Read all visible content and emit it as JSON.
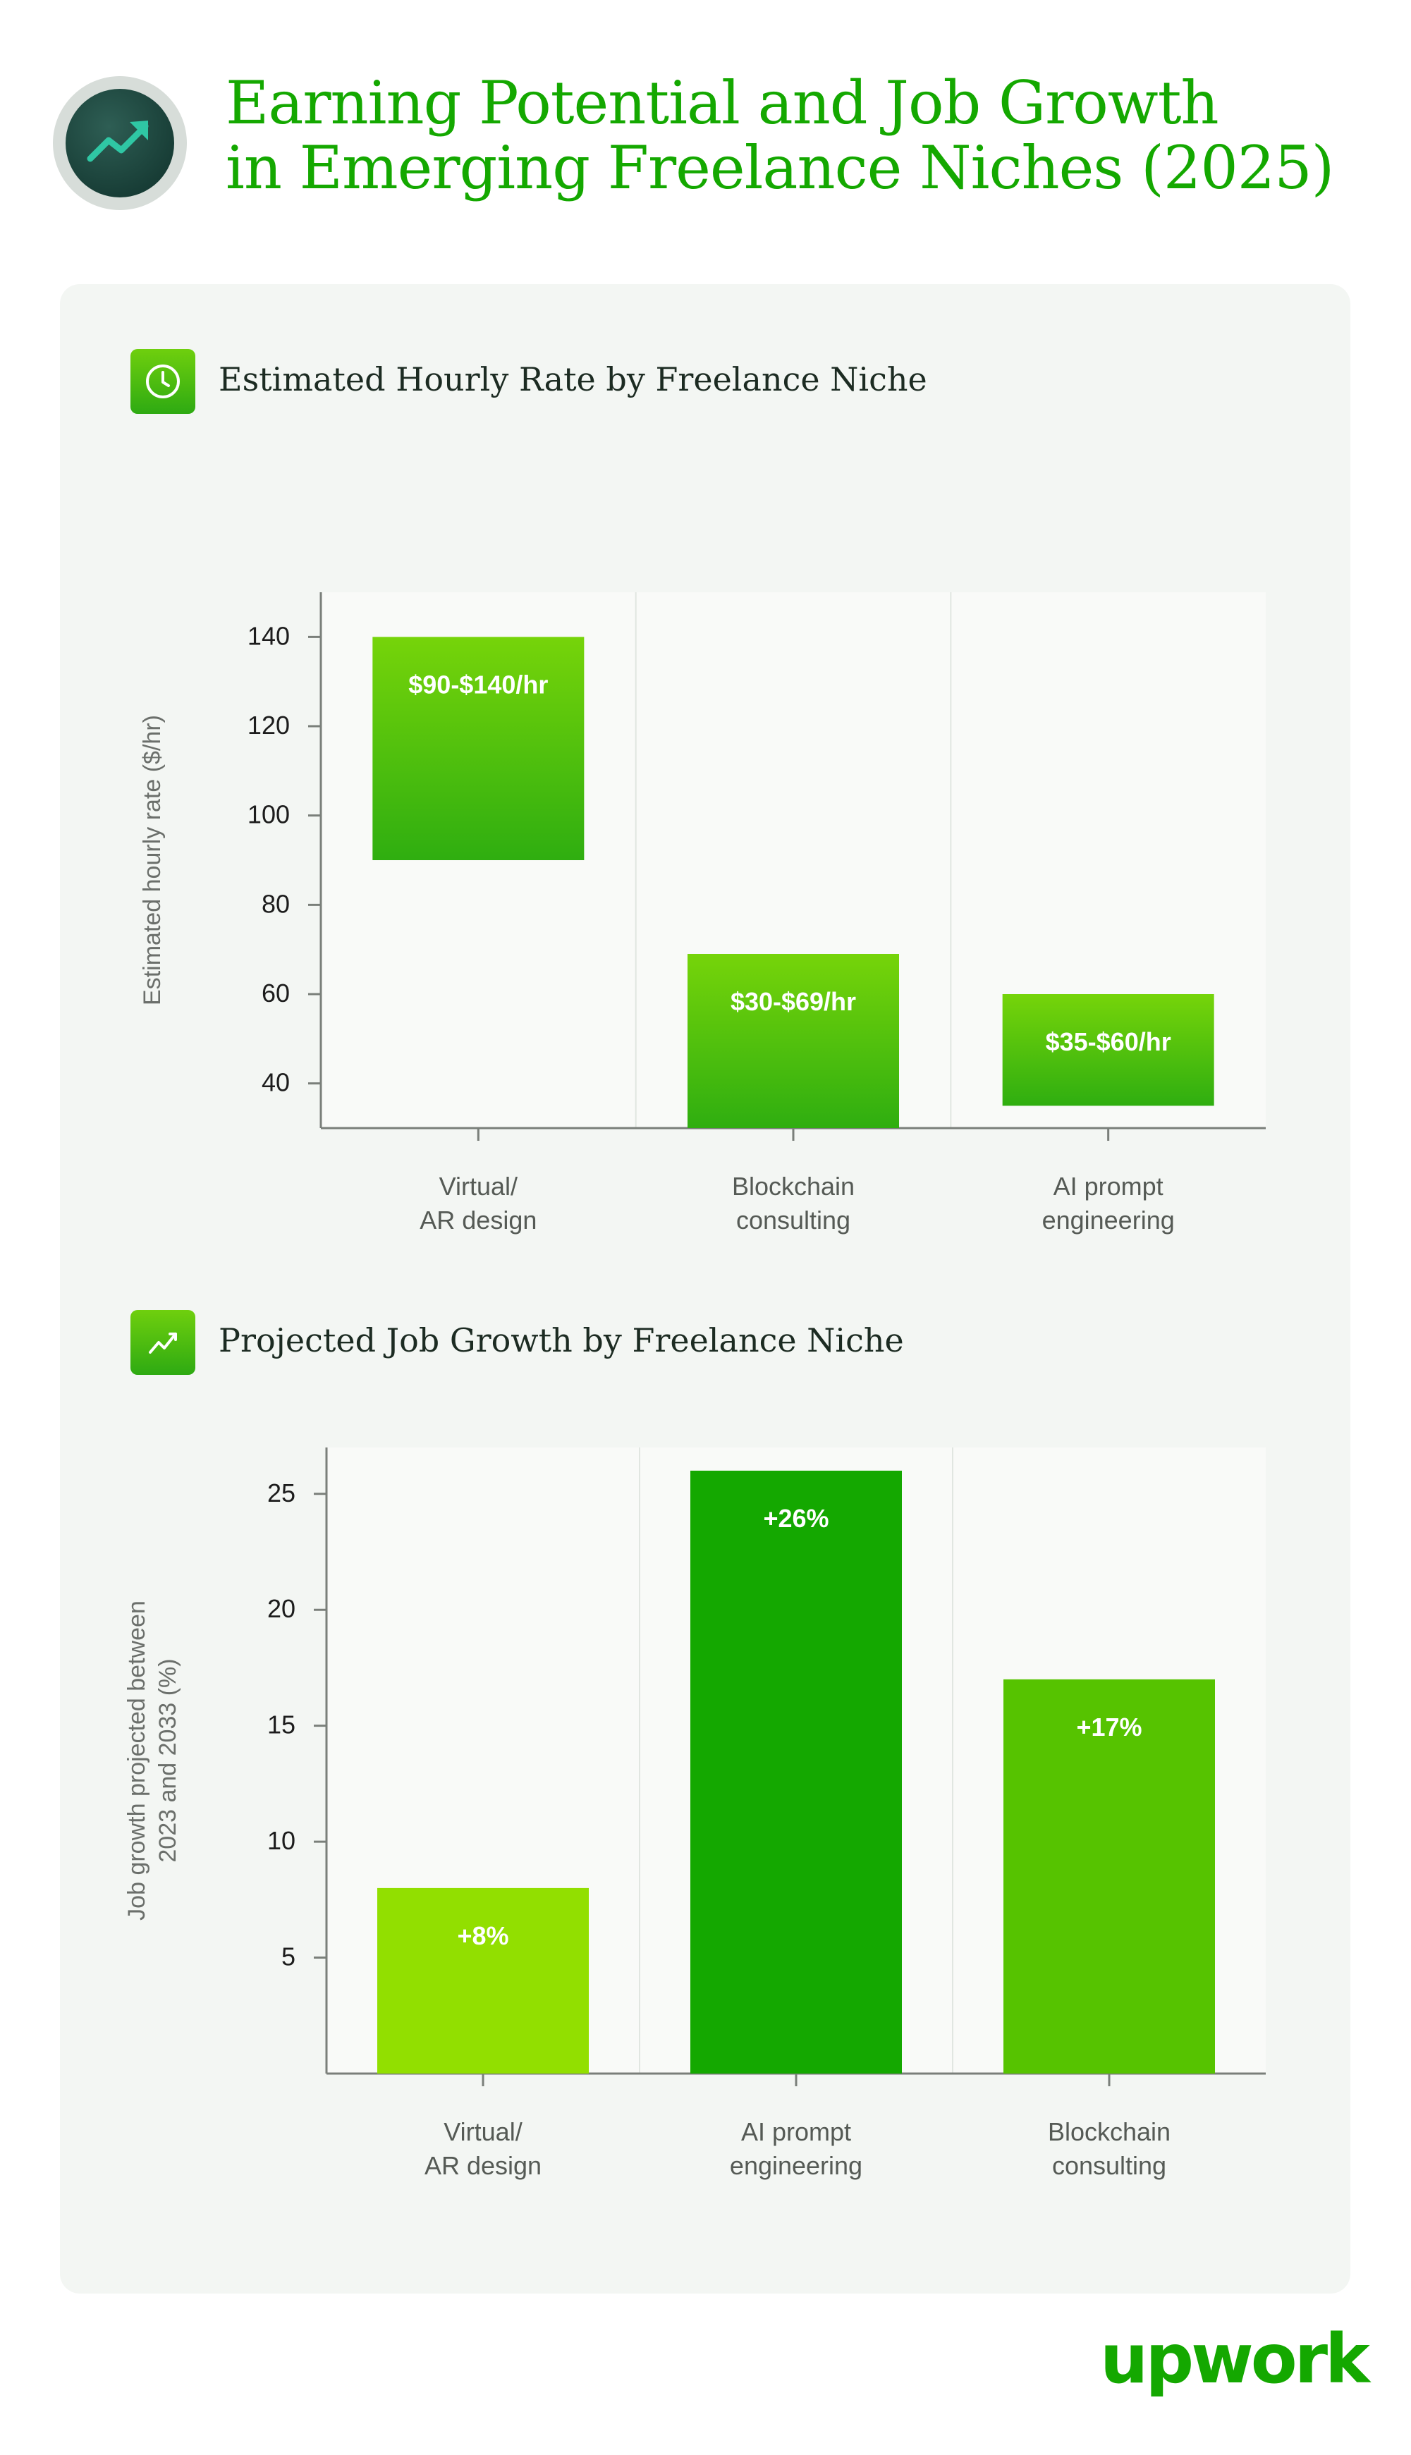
{
  "header": {
    "title_line1": "Earning Potential and Job Growth",
    "title_line2": "in Emerging Freelance Niches (2025)"
  },
  "icons": {
    "header": "trending-up-icon",
    "hourly_section": "clock-icon",
    "growth_section": "trend-line-icon"
  },
  "colors": {
    "brand": "#14a800",
    "panel": "#f3f6f3",
    "bar_light": "#92df00",
    "bar_mid": "#56c300",
    "bar_dark": "#14a800"
  },
  "chart_data": [
    {
      "type": "bar",
      "title": "Estimated Hourly Rate by Freelance Niche",
      "ylabel": "Estimated hourly rate ($/hr)",
      "xlabel": "",
      "ylim": [
        30,
        150
      ],
      "yticks": [
        40,
        60,
        80,
        100,
        120,
        140
      ],
      "categories": [
        [
          "Virtual/",
          "AR design"
        ],
        [
          "Blockchain",
          "consulting"
        ],
        [
          "AI prompt",
          "engineering"
        ]
      ],
      "ranges": [
        {
          "low": 90,
          "high": 140,
          "label": "$90-$140/hr"
        },
        {
          "low": 30,
          "high": 69,
          "label": "$30-$69/hr"
        },
        {
          "low": 35,
          "high": 60,
          "label": "$35-$60/hr"
        }
      ],
      "grid": true,
      "legend": "none"
    },
    {
      "type": "bar",
      "title": "Projected Job Growth by Freelance Niche",
      "ylabel": "Job growth projected between 2023 and 2033 (%)",
      "xlabel": "",
      "ylim": [
        0,
        27
      ],
      "yticks": [
        5,
        10,
        15,
        20,
        25
      ],
      "categories": [
        [
          "Virtual/",
          "AR design"
        ],
        [
          "AI prompt",
          "engineering"
        ],
        [
          "Blockchain",
          "consulting"
        ]
      ],
      "values": [
        8,
        26,
        17
      ],
      "labels": [
        "+8%",
        "+26%",
        "+17%"
      ],
      "bar_colors": [
        "#92df00",
        "#14a800",
        "#56c300"
      ],
      "grid": true,
      "legend": "none"
    }
  ],
  "ylabel_lines": {
    "hourly": [
      "Estimated hourly rate ($/hr)"
    ],
    "growth": [
      "Job growth projected between",
      "2023 and 2033 (%)"
    ]
  },
  "logo": {
    "text": "upwork"
  }
}
